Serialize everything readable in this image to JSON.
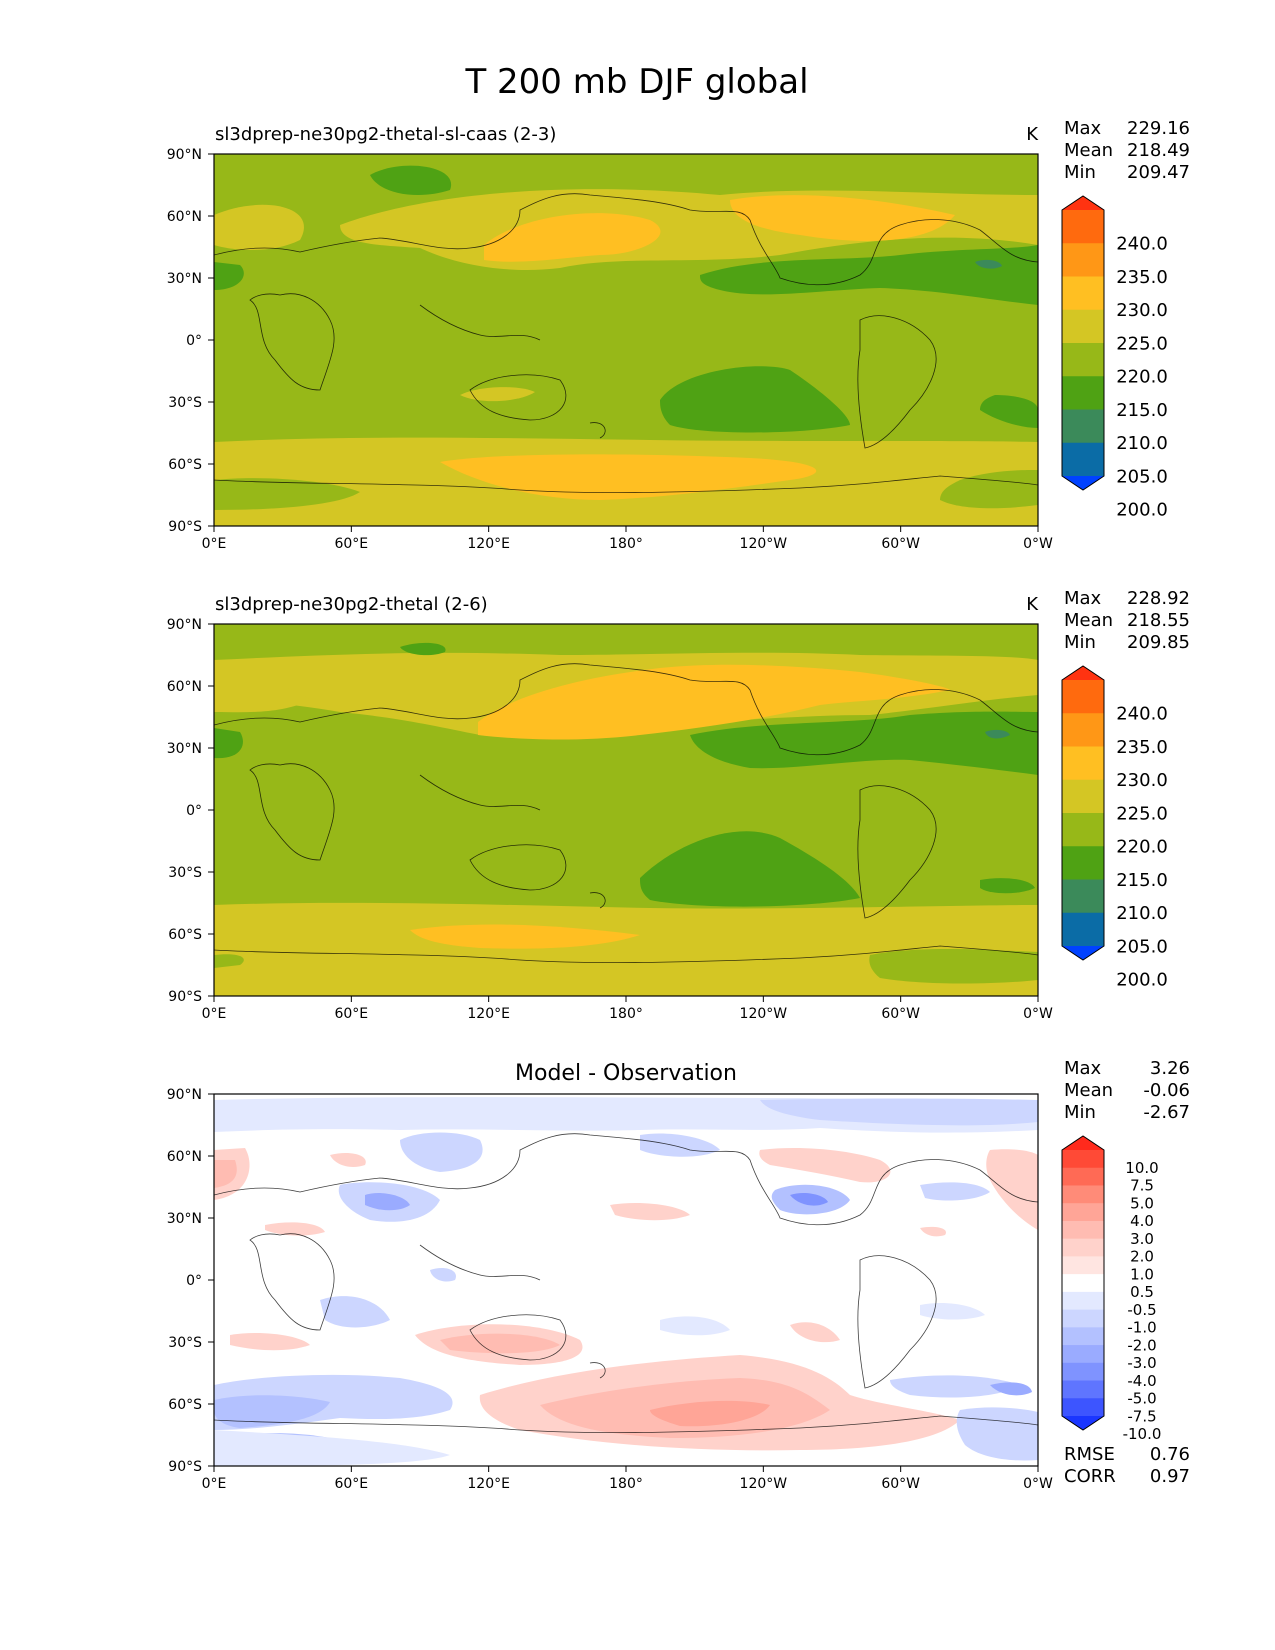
{
  "figure": {
    "title": "T 200 mb DJF global"
  },
  "axes": {
    "lat_ticks": [
      "90°N",
      "60°N",
      "30°N",
      "0°",
      "30°S",
      "60°S",
      "90°S"
    ],
    "lon_ticks": [
      "0°E",
      "60°E",
      "120°E",
      "180°",
      "120°W",
      "60°W",
      "0°W"
    ]
  },
  "panels": [
    {
      "title_left": "sl3dprep-ne30pg2-thetal-sl-caas (2-3)",
      "title_center": "",
      "units": "K",
      "stats": [
        {
          "label": "Max",
          "value": "229.16"
        },
        {
          "label": "Mean",
          "value": "218.49"
        },
        {
          "label": "Min",
          "value": "209.47"
        }
      ],
      "colorbar": {
        "labels": [
          "240.0",
          "235.0",
          "230.0",
          "225.0",
          "220.0",
          "215.0",
          "210.0",
          "205.0",
          "200.0"
        ],
        "colors": [
          "#ff3311",
          "#ff6a0e",
          "#ff9716",
          "#ffbf22",
          "#d4c624",
          "#97b818",
          "#4fa214",
          "#3b8a5a",
          "#0b6ca6",
          "#0042ff"
        ]
      },
      "extra_stats": []
    },
    {
      "title_left": "sl3dprep-ne30pg2-thetal (2-6)",
      "title_center": "",
      "units": "K",
      "stats": [
        {
          "label": "Max",
          "value": "228.92"
        },
        {
          "label": "Mean",
          "value": "218.55"
        },
        {
          "label": "Min",
          "value": "209.85"
        }
      ],
      "colorbar": {
        "labels": [
          "240.0",
          "235.0",
          "230.0",
          "225.0",
          "220.0",
          "215.0",
          "210.0",
          "205.0",
          "200.0"
        ],
        "colors": [
          "#ff3311",
          "#ff6a0e",
          "#ff9716",
          "#ffbf22",
          "#d4c624",
          "#97b818",
          "#4fa214",
          "#3b8a5a",
          "#0b6ca6",
          "#0042ff"
        ]
      },
      "extra_stats": []
    },
    {
      "title_left": "",
      "title_center": "Model - Observation",
      "units": "",
      "stats": [
        {
          "label": "Max",
          "value": "3.26"
        },
        {
          "label": "Mean",
          "value": "-0.06"
        },
        {
          "label": "Min",
          "value": "-2.67"
        }
      ],
      "colorbar": {
        "labels": [
          "10.0",
          "7.5",
          "5.0",
          "4.0",
          "3.0",
          "2.0",
          "1.0",
          "0.5",
          "-0.5",
          "-1.0",
          "-2.0",
          "-3.0",
          "-4.0",
          "-5.0",
          "-7.5",
          "-10.0"
        ],
        "colors": [
          "#ff2a1c",
          "#ff4a36",
          "#ff6a55",
          "#ff8b78",
          "#ffa597",
          "#ffbcb2",
          "#ffd2cb",
          "#ffe5e1",
          "#ffffff",
          "#e3e9ff",
          "#ccd6ff",
          "#b3c1ff",
          "#9aabff",
          "#7f93ff",
          "#5f75ff",
          "#3d55ff",
          "#1a36ff"
        ]
      },
      "extra_stats": [
        {
          "label": "RMSE",
          "value": "0.76"
        },
        {
          "label": "CORR",
          "value": "0.97"
        }
      ]
    }
  ],
  "map_palette": {
    "land_outline": "#000000",
    "axis": "#000000"
  }
}
